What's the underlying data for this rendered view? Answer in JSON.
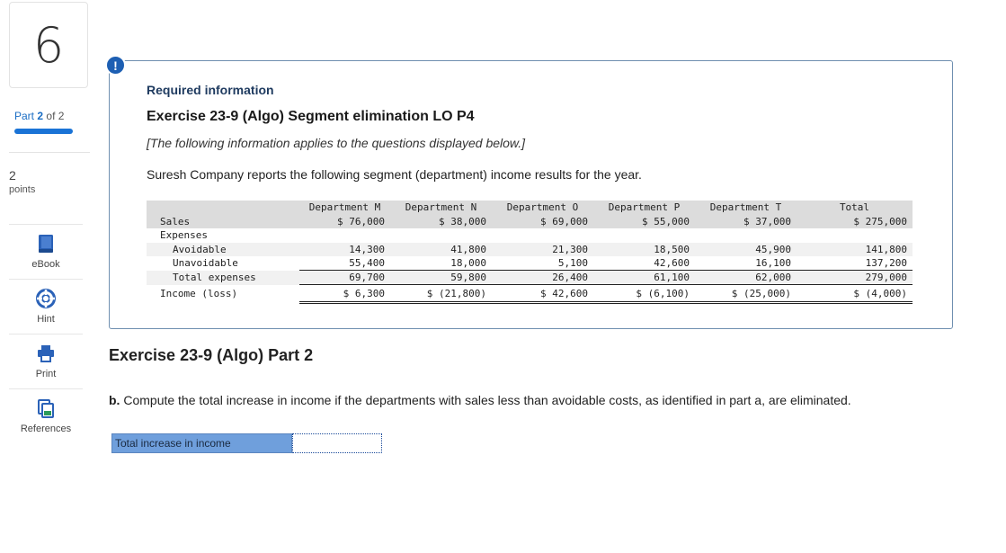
{
  "question": {
    "number": "6",
    "part_label_prefix": "Part",
    "part_current": "2",
    "part_of": "of 2",
    "points_value": "2",
    "points_label": "points"
  },
  "tools": {
    "ebook_label": "eBook",
    "hint_label": "Hint",
    "print_label": "Print",
    "references_label": "References"
  },
  "info": {
    "alert_symbol": "!",
    "required_label": "Required information",
    "exercise_title": "Exercise 23-9 (Algo) Segment elimination LO P4",
    "subtitle": "[The following information applies to the questions displayed below.]",
    "description": "Suresh Company reports the following segment (department) income results for the year."
  },
  "table": {
    "headers": [
      "Department M",
      "Department N",
      "Department O",
      "Department P",
      "Department T",
      "Total"
    ],
    "sales_label": "Sales",
    "sales": [
      "$ 76,000",
      "$ 38,000",
      "$ 69,000",
      "$ 55,000",
      "$ 37,000",
      "$ 275,000"
    ],
    "expenses_label": "Expenses",
    "avoidable_label": "Avoidable",
    "avoidable": [
      "14,300",
      "41,800",
      "21,300",
      "18,500",
      "45,900",
      "141,800"
    ],
    "unavoidable_label": "Unavoidable",
    "unavoidable": [
      "55,400",
      "18,000",
      "5,100",
      "42,600",
      "16,100",
      "137,200"
    ],
    "total_expenses_label": "Total expenses",
    "total_expenses": [
      "69,700",
      "59,800",
      "26,400",
      "61,100",
      "62,000",
      "279,000"
    ],
    "income_label": "Income (loss)",
    "income": [
      "$ 6,300",
      "$ (21,800)",
      "$ 42,600",
      "$ (6,100)",
      "$ (25,000)",
      "$ (4,000)"
    ]
  },
  "part2": {
    "title": "Exercise 23-9 (Algo) Part 2",
    "question_prefix": "b.",
    "question_text": " Compute the total increase in income if the departments with sales less than avoidable costs, as identified in part a, are eliminated.",
    "answer_label": "Total increase in income",
    "answer_value": ""
  },
  "colors": {
    "accent": "#1a73d6",
    "answer_label_bg": "#6f9fdc",
    "info_border": "#6f8fb0",
    "alert_bg": "#1d5fb3"
  }
}
